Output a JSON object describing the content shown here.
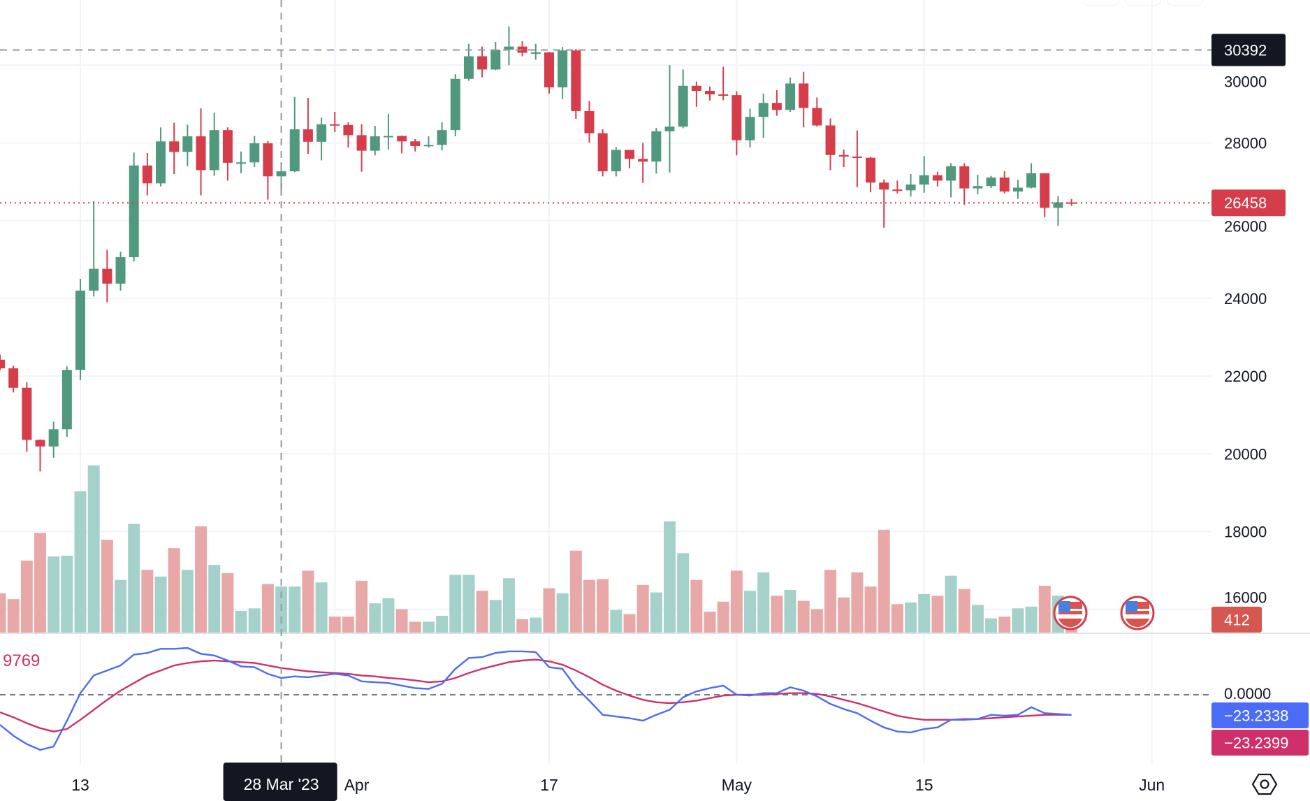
{
  "chart_data": {
    "type": "candlestick",
    "price_axis": {
      "ticks": [
        "30000",
        "28000",
        "26000",
        "24000",
        "22000",
        "20000",
        "18000",
        "16000"
      ],
      "range": [
        15400,
        31500
      ]
    },
    "time_axis": {
      "ticks": [
        {
          "label": "13",
          "date": "2023-03-13"
        },
        {
          "label": "Apr",
          "date": "2023-04-01"
        },
        {
          "label": "17",
          "date": "2023-04-17"
        },
        {
          "label": "May",
          "date": "2023-05-01"
        },
        {
          "label": "15",
          "date": "2023-05-15"
        },
        {
          "label": "Jun",
          "date": "2023-06-01"
        }
      ]
    },
    "grid": true,
    "colors": {
      "up": "#50987e",
      "down": "#d63d4b",
      "vol_up": "#a5d1cb",
      "vol_down": "#e8a8a8",
      "macd": "#4a6cf7",
      "signal": "#d0306a"
    },
    "columns": [
      "date",
      "open",
      "high",
      "low",
      "close",
      "volume"
    ],
    "candles": [
      [
        "2023-03-07",
        22420,
        22550,
        22150,
        22200,
        47
      ],
      [
        "2023-03-08",
        22200,
        22270,
        21580,
        21700,
        40
      ],
      [
        "2023-03-09",
        21700,
        21840,
        20050,
        20360,
        86
      ],
      [
        "2023-03-10",
        20360,
        20370,
        19550,
        20190,
        119
      ],
      [
        "2023-03-11",
        20190,
        20830,
        19900,
        20630,
        91
      ],
      [
        "2023-03-12",
        20630,
        22250,
        20440,
        22160,
        92
      ],
      [
        "2023-03-13",
        22160,
        24500,
        21900,
        24200,
        169
      ],
      [
        "2023-03-14",
        24200,
        26500,
        24050,
        24760,
        200
      ],
      [
        "2023-03-15",
        24760,
        25250,
        23900,
        24380,
        111
      ],
      [
        "2023-03-16",
        24380,
        25200,
        24200,
        25060,
        63
      ],
      [
        "2023-03-17",
        25060,
        27750,
        24950,
        27420,
        130
      ],
      [
        "2023-03-18",
        27420,
        27740,
        26650,
        26960,
        75
      ],
      [
        "2023-03-19",
        26960,
        28400,
        26880,
        28040,
        67
      ],
      [
        "2023-03-20",
        28040,
        28520,
        27200,
        27770,
        101
      ],
      [
        "2023-03-21",
        27770,
        28470,
        27400,
        28170,
        75
      ],
      [
        "2023-03-22",
        28170,
        28890,
        26650,
        27300,
        127
      ],
      [
        "2023-03-23",
        27300,
        28780,
        27150,
        28330,
        81
      ],
      [
        "2023-03-24",
        28330,
        28400,
        27030,
        27490,
        71
      ],
      [
        "2023-03-25",
        27490,
        27780,
        27220,
        27500,
        26
      ],
      [
        "2023-03-26",
        27500,
        28180,
        27380,
        27990,
        29
      ],
      [
        "2023-03-27",
        27990,
        28050,
        26540,
        27140,
        58
      ],
      [
        "2023-03-28",
        27140,
        27500,
        26660,
        27270,
        55
      ],
      [
        "2023-03-29",
        27270,
        29180,
        27250,
        28350,
        55
      ],
      [
        "2023-03-30",
        28350,
        29160,
        27720,
        28030,
        74
      ],
      [
        "2023-03-31",
        28030,
        28650,
        27550,
        28480,
        60
      ],
      [
        "2023-04-01",
        28480,
        28800,
        28280,
        28460,
        19
      ],
      [
        "2023-04-02",
        28460,
        28530,
        27880,
        28200,
        19
      ],
      [
        "2023-04-03",
        28200,
        28480,
        27260,
        27800,
        62
      ],
      [
        "2023-04-04",
        27800,
        28440,
        27680,
        28170,
        35
      ],
      [
        "2023-04-05",
        28170,
        28750,
        27830,
        28180,
        41
      ],
      [
        "2023-04-06",
        28180,
        28190,
        27730,
        28040,
        28
      ],
      [
        "2023-04-07",
        28040,
        28100,
        27780,
        27920,
        13
      ],
      [
        "2023-04-08",
        27920,
        28170,
        27880,
        27950,
        13
      ],
      [
        "2023-04-09",
        27950,
        28530,
        27810,
        28330,
        20
      ],
      [
        "2023-04-10",
        28330,
        29770,
        28170,
        29650,
        69
      ],
      [
        "2023-04-11",
        29650,
        30550,
        29600,
        30230,
        69
      ],
      [
        "2023-04-12",
        30230,
        30480,
        29690,
        29890,
        50
      ],
      [
        "2023-04-13",
        29890,
        30600,
        29870,
        30400,
        39
      ],
      [
        "2023-04-14",
        30400,
        31000,
        30000,
        30480,
        65
      ],
      [
        "2023-04-15",
        30480,
        30620,
        30230,
        30320,
        16
      ],
      [
        "2023-04-16",
        30320,
        30550,
        30140,
        30330,
        18
      ],
      [
        "2023-04-17",
        30330,
        30340,
        29270,
        29430,
        53
      ],
      [
        "2023-04-18",
        29430,
        30470,
        29130,
        30380,
        47
      ],
      [
        "2023-04-19",
        30380,
        30420,
        28620,
        28820,
        98
      ],
      [
        "2023-04-20",
        28820,
        29080,
        28010,
        28250,
        63
      ],
      [
        "2023-04-21",
        28250,
        28350,
        27140,
        27270,
        64
      ],
      [
        "2023-04-22",
        27270,
        27890,
        27140,
        27820,
        27
      ],
      [
        "2023-04-23",
        27820,
        27820,
        27350,
        27590,
        22
      ],
      [
        "2023-04-24",
        27590,
        28000,
        26970,
        27520,
        57
      ],
      [
        "2023-04-25",
        27520,
        28390,
        27210,
        28300,
        48
      ],
      [
        "2023-04-26",
        28300,
        30000,
        27240,
        28420,
        133
      ],
      [
        "2023-04-27",
        28420,
        29890,
        28380,
        29470,
        95
      ],
      [
        "2023-04-28",
        29470,
        29580,
        28930,
        29340,
        63
      ],
      [
        "2023-04-29",
        29340,
        29450,
        29090,
        29250,
        25
      ],
      [
        "2023-04-30",
        29250,
        29960,
        29100,
        29230,
        37
      ],
      [
        "2023-05-01",
        29230,
        29330,
        27680,
        28070,
        74
      ],
      [
        "2023-05-02",
        28070,
        28880,
        27880,
        28670,
        50
      ],
      [
        "2023-05-03",
        28670,
        29270,
        28130,
        29030,
        72
      ],
      [
        "2023-05-04",
        29030,
        29360,
        28700,
        28850,
        44
      ],
      [
        "2023-05-05",
        28850,
        29680,
        28800,
        29530,
        51
      ],
      [
        "2023-05-06",
        29530,
        29830,
        28400,
        28900,
        38
      ],
      [
        "2023-05-07",
        28900,
        29170,
        28420,
        28450,
        28
      ],
      [
        "2023-05-08",
        28450,
        28630,
        27300,
        27690,
        75
      ],
      [
        "2023-05-09",
        27690,
        27830,
        27380,
        27650,
        42
      ],
      [
        "2023-05-10",
        27650,
        28320,
        26860,
        27620,
        72
      ],
      [
        "2023-05-11",
        27620,
        27640,
        26730,
        26980,
        55
      ],
      [
        "2023-05-12",
        26980,
        27060,
        25820,
        26800,
        123
      ],
      [
        "2023-05-13",
        26800,
        27030,
        26700,
        26780,
        34
      ],
      [
        "2023-05-14",
        26780,
        27200,
        26620,
        26930,
        36
      ],
      [
        "2023-05-15",
        26930,
        27660,
        26720,
        27170,
        46
      ],
      [
        "2023-05-16",
        27170,
        27260,
        26880,
        27030,
        44
      ],
      [
        "2023-05-17",
        27030,
        27480,
        26600,
        27400,
        68
      ],
      [
        "2023-05-18",
        27400,
        27480,
        26410,
        26830,
        52
      ],
      [
        "2023-05-19",
        26830,
        27180,
        26680,
        26890,
        33
      ],
      [
        "2023-05-20",
        26890,
        27150,
        26840,
        27110,
        17
      ],
      [
        "2023-05-21",
        27110,
        27270,
        26700,
        26750,
        19
      ],
      [
        "2023-05-22",
        26750,
        27050,
        26560,
        26850,
        29
      ],
      [
        "2023-05-23",
        26850,
        27480,
        26830,
        27220,
        31
      ],
      [
        "2023-05-24",
        27220,
        27220,
        26090,
        26330,
        56
      ],
      [
        "2023-05-25",
        26330,
        26630,
        25870,
        26470,
        44
      ],
      [
        "2023-05-26",
        26470,
        26560,
        26380,
        26458,
        7
      ]
    ],
    "macd": {
      "zero_label": "0.0000",
      "macd_values": [
        -34.8,
        -47.4,
        -57.1,
        -63.9,
        -60.0,
        -30.0,
        1.9,
        22.3,
        28.1,
        33.9,
        46.5,
        48.4,
        53.2,
        53.2,
        54.2,
        47.4,
        45.5,
        39.7,
        32.9,
        31.9,
        24.2,
        19.4,
        21.3,
        20.3,
        22.3,
        24.2,
        22.3,
        15.5,
        14.5,
        13.6,
        10.6,
        7.7,
        6.8,
        12.6,
        30.0,
        42.6,
        43.6,
        48.4,
        50.3,
        50.3,
        49.4,
        31.9,
        30.0,
        8.7,
        -6.8,
        -23.2,
        -25.2,
        -27.1,
        -30.0,
        -23.2,
        -17.4,
        -2.9,
        3.9,
        7.7,
        10.6,
        0,
        -1.0,
        1.9,
        1.9,
        8.7,
        4.8,
        -1.9,
        -10.6,
        -16.5,
        -21.3,
        -30.0,
        -37.8,
        -42.6,
        -43.6,
        -39.7,
        -37.8,
        -29.0,
        -29.0,
        -28.1,
        -23.2,
        -24.2,
        -23.2,
        -14.5,
        -21.3,
        -22.3,
        -23.2338
      ],
      "signal_values": [
        -20.3,
        -26.1,
        -32.9,
        -38.7,
        -42.6,
        -39.7,
        -29.0,
        -17.4,
        -5.8,
        4.8,
        13.6,
        22.3,
        28.1,
        33.9,
        36.8,
        38.7,
        39.7,
        38.7,
        37.8,
        36.8,
        33.9,
        31.0,
        29.0,
        27.1,
        26.1,
        25.2,
        24.2,
        22.3,
        21.3,
        19.4,
        18.4,
        16.5,
        14.5,
        15.5,
        19.4,
        25.2,
        30.0,
        33.9,
        37.8,
        39.7,
        40.7,
        38.7,
        34.8,
        28.1,
        20.3,
        11.6,
        4.8,
        -1.0,
        -5.8,
        -8.7,
        -9.7,
        -8.7,
        -6.8,
        -3.9,
        -1.0,
        0,
        0,
        0,
        1.0,
        1.9,
        1.9,
        1.0,
        -1.9,
        -5.8,
        -9.7,
        -14.5,
        -19.4,
        -24.2,
        -27.1,
        -29.0,
        -29.0,
        -29.0,
        -28.1,
        -28.1,
        -27.1,
        -26.1,
        -25.2,
        -24.2,
        -23.2,
        -23.2,
        -23.2399
      ],
      "partial_left_label": "9769"
    },
    "last_price_label": "26458",
    "crosshair_price_label": "30392",
    "volume_label": "412",
    "macd_label": "−23.2338",
    "signal_label": "−23.2399",
    "crosshair_date_label": "28 Mar '23",
    "crosshair_date": "2023-03-28",
    "event_icons": [
      "us-flag-icon",
      "us-flag-icon"
    ]
  }
}
